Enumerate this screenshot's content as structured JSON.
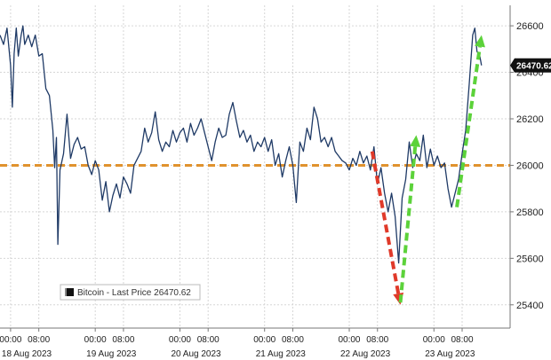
{
  "chart_data": {
    "type": "line",
    "title": "",
    "xlabel": "",
    "ylabel": "",
    "ylim": [
      25300,
      26650
    ],
    "y_ticks": [
      25400,
      25600,
      25800,
      26000,
      26200,
      26400,
      26600
    ],
    "y_tick_labels": [
      "25400",
      "25600",
      "25800",
      "26000",
      "26200",
      "26400",
      "26600"
    ],
    "time_ticks": [
      {
        "t": 0,
        "label": "00:00"
      },
      {
        "t": 8,
        "label": "08:00"
      },
      {
        "t": 24,
        "label": "00:00"
      },
      {
        "t": 32,
        "label": "08:00"
      },
      {
        "t": 48,
        "label": "00:00"
      },
      {
        "t": 56,
        "label": "08:00"
      },
      {
        "t": 72,
        "label": "00:00"
      },
      {
        "t": 80,
        "label": "08:00"
      },
      {
        "t": 96,
        "label": "00:00"
      },
      {
        "t": 104,
        "label": "08:00"
      },
      {
        "t": 120,
        "label": "00:00"
      },
      {
        "t": 128,
        "label": "08:00"
      }
    ],
    "date_labels": [
      {
        "t": 0,
        "label": "18 Aug 2023"
      },
      {
        "t": 24,
        "label": "19 Aug 2023"
      },
      {
        "t": 48,
        "label": "20 Aug 2023"
      },
      {
        "t": 72,
        "label": "21 Aug 2023"
      },
      {
        "t": 96,
        "label": "22 Aug 2023"
      },
      {
        "t": 120,
        "label": "23 Aug 2023"
      }
    ],
    "grid": true,
    "legend_position": "bottom-left",
    "series": [
      {
        "name": "Bitcoin - Last Price 26470.62",
        "color": "#1f3a66",
        "points": [
          [
            -3,
            26560
          ],
          [
            -2,
            26520
          ],
          [
            -1,
            26590
          ],
          [
            0,
            26430
          ],
          [
            0.5,
            26250
          ],
          [
            1,
            26480
          ],
          [
            1.6,
            26590
          ],
          [
            2.2,
            26470
          ],
          [
            3,
            26560
          ],
          [
            3.5,
            26600
          ],
          [
            4,
            26520
          ],
          [
            5,
            26560
          ],
          [
            6,
            26510
          ],
          [
            7,
            26560
          ],
          [
            8,
            26470
          ],
          [
            9,
            26480
          ],
          [
            10,
            26330
          ],
          [
            11,
            26300
          ],
          [
            12,
            26150
          ],
          [
            12.5,
            25990
          ],
          [
            13,
            26120
          ],
          [
            13.4,
            25660
          ],
          [
            14,
            25980
          ],
          [
            15,
            26050
          ],
          [
            16,
            26220
          ],
          [
            17,
            26030
          ],
          [
            18,
            26090
          ],
          [
            19,
            26120
          ],
          [
            20,
            26070
          ],
          [
            21,
            26080
          ],
          [
            22,
            26000
          ],
          [
            23,
            25960
          ],
          [
            24,
            26020
          ],
          [
            25,
            25980
          ],
          [
            26,
            25850
          ],
          [
            27,
            25930
          ],
          [
            28,
            25800
          ],
          [
            29,
            25870
          ],
          [
            30,
            25920
          ],
          [
            31,
            25860
          ],
          [
            32,
            25950
          ],
          [
            33,
            25920
          ],
          [
            34,
            25880
          ],
          [
            35,
            26000
          ],
          [
            36,
            26030
          ],
          [
            37,
            26060
          ],
          [
            38,
            26160
          ],
          [
            39,
            26100
          ],
          [
            40,
            26140
          ],
          [
            41,
            26230
          ],
          [
            42,
            26110
          ],
          [
            43,
            26060
          ],
          [
            44,
            26100
          ],
          [
            45,
            26080
          ],
          [
            46,
            26150
          ],
          [
            47,
            26100
          ],
          [
            48,
            26140
          ],
          [
            49,
            26160
          ],
          [
            50,
            26100
          ],
          [
            51,
            26180
          ],
          [
            52,
            26130
          ],
          [
            53,
            26160
          ],
          [
            54,
            26200
          ],
          [
            55,
            26140
          ],
          [
            56,
            26080
          ],
          [
            57,
            26020
          ],
          [
            58,
            26100
          ],
          [
            59,
            26160
          ],
          [
            60,
            26120
          ],
          [
            61,
            26130
          ],
          [
            62,
            26220
          ],
          [
            63,
            26270
          ],
          [
            64,
            26190
          ],
          [
            65,
            26120
          ],
          [
            66,
            26150
          ],
          [
            67,
            26100
          ],
          [
            68,
            26130
          ],
          [
            69,
            26060
          ],
          [
            70,
            26100
          ],
          [
            71,
            26080
          ],
          [
            72,
            26120
          ],
          [
            73,
            26060
          ],
          [
            74,
            26110
          ],
          [
            75,
            26000
          ],
          [
            76,
            26050
          ],
          [
            77,
            25950
          ],
          [
            78,
            26020
          ],
          [
            79,
            26080
          ],
          [
            80,
            26000
          ],
          [
            81,
            25840
          ],
          [
            82,
            26100
          ],
          [
            83,
            26060
          ],
          [
            84,
            26160
          ],
          [
            85,
            26110
          ],
          [
            86,
            26250
          ],
          [
            87,
            26200
          ],
          [
            88,
            26100
          ],
          [
            89,
            26120
          ],
          [
            90,
            26080
          ],
          [
            91,
            26120
          ],
          [
            92,
            26060
          ],
          [
            93,
            26040
          ],
          [
            94,
            26020
          ],
          [
            95,
            26010
          ],
          [
            96,
            25980
          ],
          [
            97,
            26030
          ],
          [
            98,
            26000
          ],
          [
            99,
            26060
          ],
          [
            100,
            26010
          ],
          [
            101,
            26040
          ],
          [
            102,
            25980
          ],
          [
            103,
            26080
          ],
          [
            104,
            25920
          ],
          [
            105,
            25990
          ],
          [
            106,
            25880
          ],
          [
            107,
            25800
          ],
          [
            108,
            25880
          ],
          [
            109,
            25780
          ],
          [
            110,
            25580
          ],
          [
            111,
            25860
          ],
          [
            112,
            25940
          ],
          [
            113,
            26100
          ],
          [
            114,
            25990
          ],
          [
            115,
            26050
          ],
          [
            116,
            26020
          ],
          [
            117,
            26130
          ],
          [
            118,
            25990
          ],
          [
            119,
            26070
          ],
          [
            120,
            26000
          ],
          [
            121,
            26040
          ],
          [
            122,
            25990
          ],
          [
            123,
            26010
          ],
          [
            124,
            25900
          ],
          [
            125,
            25820
          ],
          [
            126,
            25880
          ],
          [
            127,
            25940
          ],
          [
            128,
            26050
          ],
          [
            129,
            26150
          ],
          [
            130,
            26350
          ],
          [
            131,
            26560
          ],
          [
            131.6,
            26590
          ],
          [
            132.2,
            26490
          ],
          [
            133,
            26470
          ],
          [
            133.5,
            26430
          ]
        ]
      }
    ],
    "reference_line": {
      "y": 26000,
      "color": "#e0922e",
      "style": "dashed"
    },
    "annotations": [
      {
        "name": "red-down-arrow",
        "color": "#e03a2a",
        "from": [
          102.5,
          26060
        ],
        "to": [
          110.5,
          25400
        ]
      },
      {
        "name": "green-up-arrow-1",
        "color": "#5cd23a",
        "from": [
          110.5,
          25410
        ],
        "to": [
          115,
          26130
        ]
      },
      {
        "name": "green-up-arrow-2",
        "color": "#5cd23a",
        "from": [
          126.5,
          25820
        ],
        "to": [
          133.5,
          26560
        ]
      }
    ],
    "legend": {
      "label": "Bitcoin - Last Price 26470.62"
    },
    "last_value_label": "26470.62"
  }
}
